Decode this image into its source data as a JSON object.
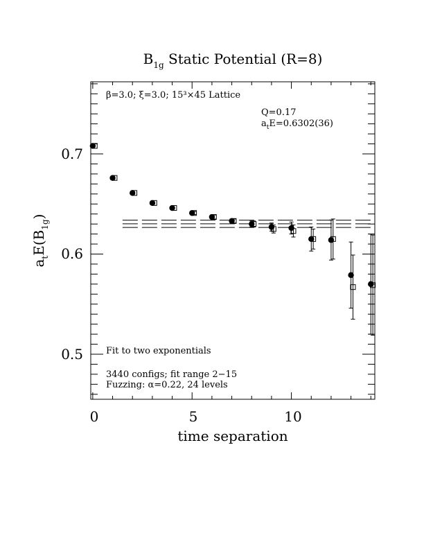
{
  "chart_data": {
    "type": "scatter",
    "title": "B",
    "title_sub": "1g",
    "title_rest": " Static Potential (R=8)",
    "xlabel": "time separation",
    "ylabel_main": "a",
    "ylabel_t": "t",
    "ylabel_mid": "E(B",
    "ylabel_sub": "1g",
    "ylabel_end": ")",
    "xlim": [
      -0.1,
      14.2
    ],
    "ylim": [
      0.455,
      0.772
    ],
    "xticks": [
      0,
      5,
      10
    ],
    "xtick_labels": [
      "0",
      "5",
      "10"
    ],
    "yticks": [
      0.5,
      0.6,
      0.7
    ],
    "ytick_labels": [
      "0.5",
      "0.6",
      "0.7"
    ],
    "grid": false,
    "annotations": {
      "lattice": "β=3.0; ξ=3.0; 15³×45 Lattice",
      "q": "Q=0.17",
      "fit_energy_prefix": "a",
      "fit_energy_sub": "t",
      "fit_energy_rest": "E=0.6302(36)",
      "method": "Fit to two exponentials",
      "configs": "3440 configs; fit range 2−15",
      "fuzzing": "Fuzzing: α=0.22, 24 levels"
    },
    "fit": {
      "value": 0.6302,
      "error": 0.0036,
      "x_range": [
        1.5,
        14.2
      ]
    },
    "series": [
      {
        "marker": "filled-circle",
        "x": [
          0,
          1,
          2,
          3,
          4,
          5,
          6,
          7,
          8,
          9,
          10,
          11,
          12,
          13,
          14
        ],
        "y": [
          0.708,
          0.676,
          0.661,
          0.651,
          0.646,
          0.641,
          0.637,
          0.633,
          0.63,
          0.627,
          0.626,
          0.615,
          0.614,
          0.579,
          0.57
        ],
        "err": [
          0.001,
          0.001,
          0.001,
          0.001,
          0.001,
          0.0015,
          0.002,
          0.002,
          0.003,
          0.004,
          0.006,
          0.012,
          0.02,
          0.033,
          0.05
        ]
      },
      {
        "marker": "open-square",
        "x": [
          0.1,
          1.1,
          2.1,
          3.1,
          4.1,
          5.1,
          6.1,
          7.1,
          8.1,
          9.1,
          10.1,
          11.1,
          12.1,
          13.1,
          14.1
        ],
        "y": [
          0.708,
          0.676,
          0.661,
          0.651,
          0.646,
          0.641,
          0.637,
          0.633,
          0.63,
          0.625,
          0.623,
          0.615,
          0.615,
          0.567,
          0.569
        ],
        "err": [
          0.001,
          0.001,
          0.001,
          0.001,
          0.001,
          0.0015,
          0.002,
          0.002,
          0.003,
          0.004,
          0.006,
          0.01,
          0.02,
          0.032,
          0.05
        ]
      }
    ]
  }
}
